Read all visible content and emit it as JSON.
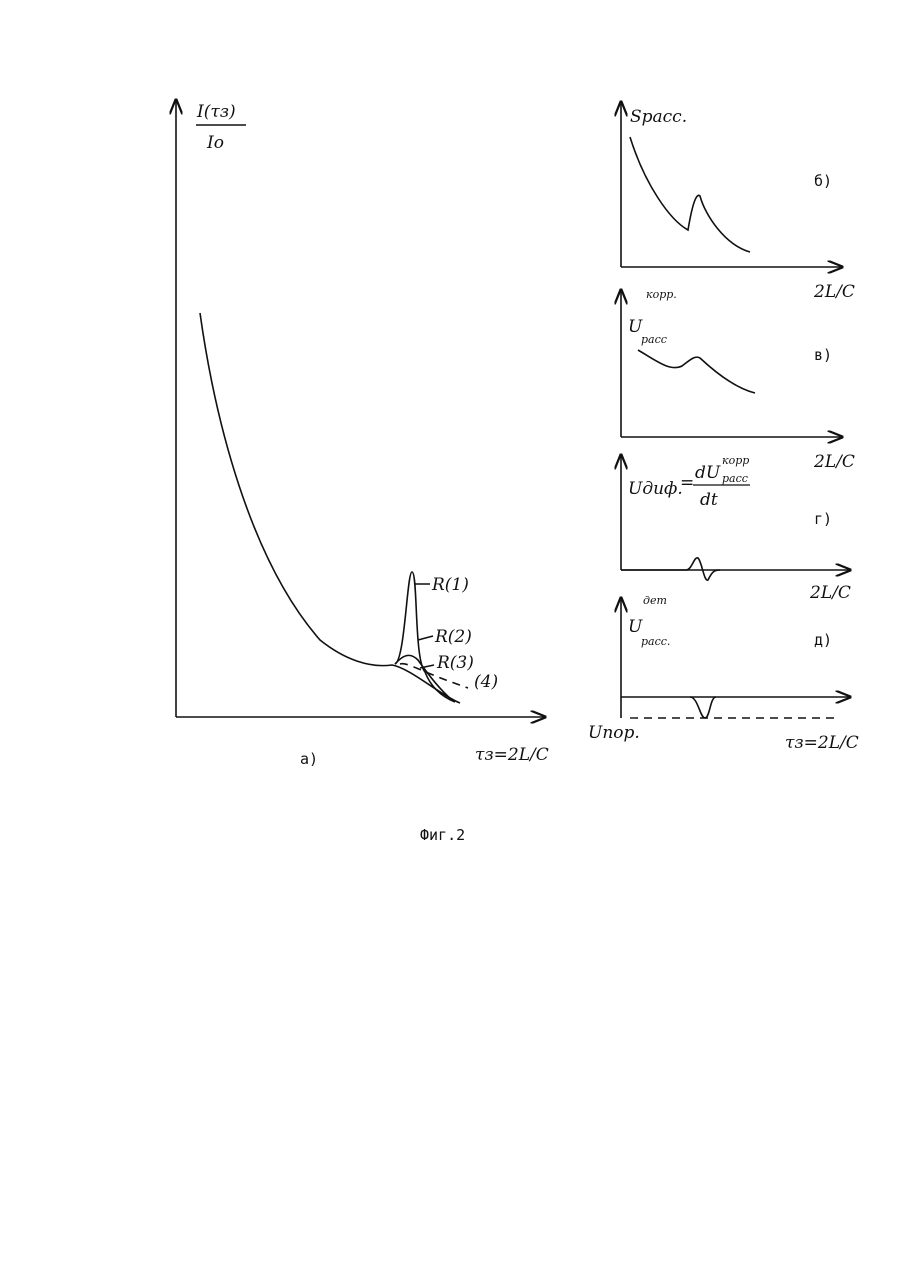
{
  "panel_a": {
    "y_label": {
      "numerator": "I(τз)",
      "denominator": "Iо"
    },
    "curve_labels": [
      "R(1)",
      "R(2)",
      "R(3)",
      "(4)"
    ],
    "x_label": "τз=2L/C",
    "tag": "а)"
  },
  "panel_b": {
    "y_label": "Sрасс.",
    "x_label": "2L/C",
    "tag": "б)"
  },
  "panel_v": {
    "y_label": {
      "base": "U",
      "sub": "расс",
      "sup": "корр."
    },
    "x_label": "2L/C",
    "tag": "в)"
  },
  "panel_g": {
    "y_label": {
      "lhs": "Uдиф.",
      "eq": "=",
      "numerator": {
        "base": "dU",
        "sub": "расс",
        "sup": "корр"
      },
      "denominator": "dt"
    },
    "x_label": "2L/C",
    "tag": "г)"
  },
  "panel_d": {
    "y_label": {
      "base": "U",
      "sub": "расс.",
      "sup": "дет"
    },
    "threshold_label": "Uпор.",
    "x_label": "τз=2L/C",
    "tag": "д)"
  },
  "caption": "Фиг.2"
}
